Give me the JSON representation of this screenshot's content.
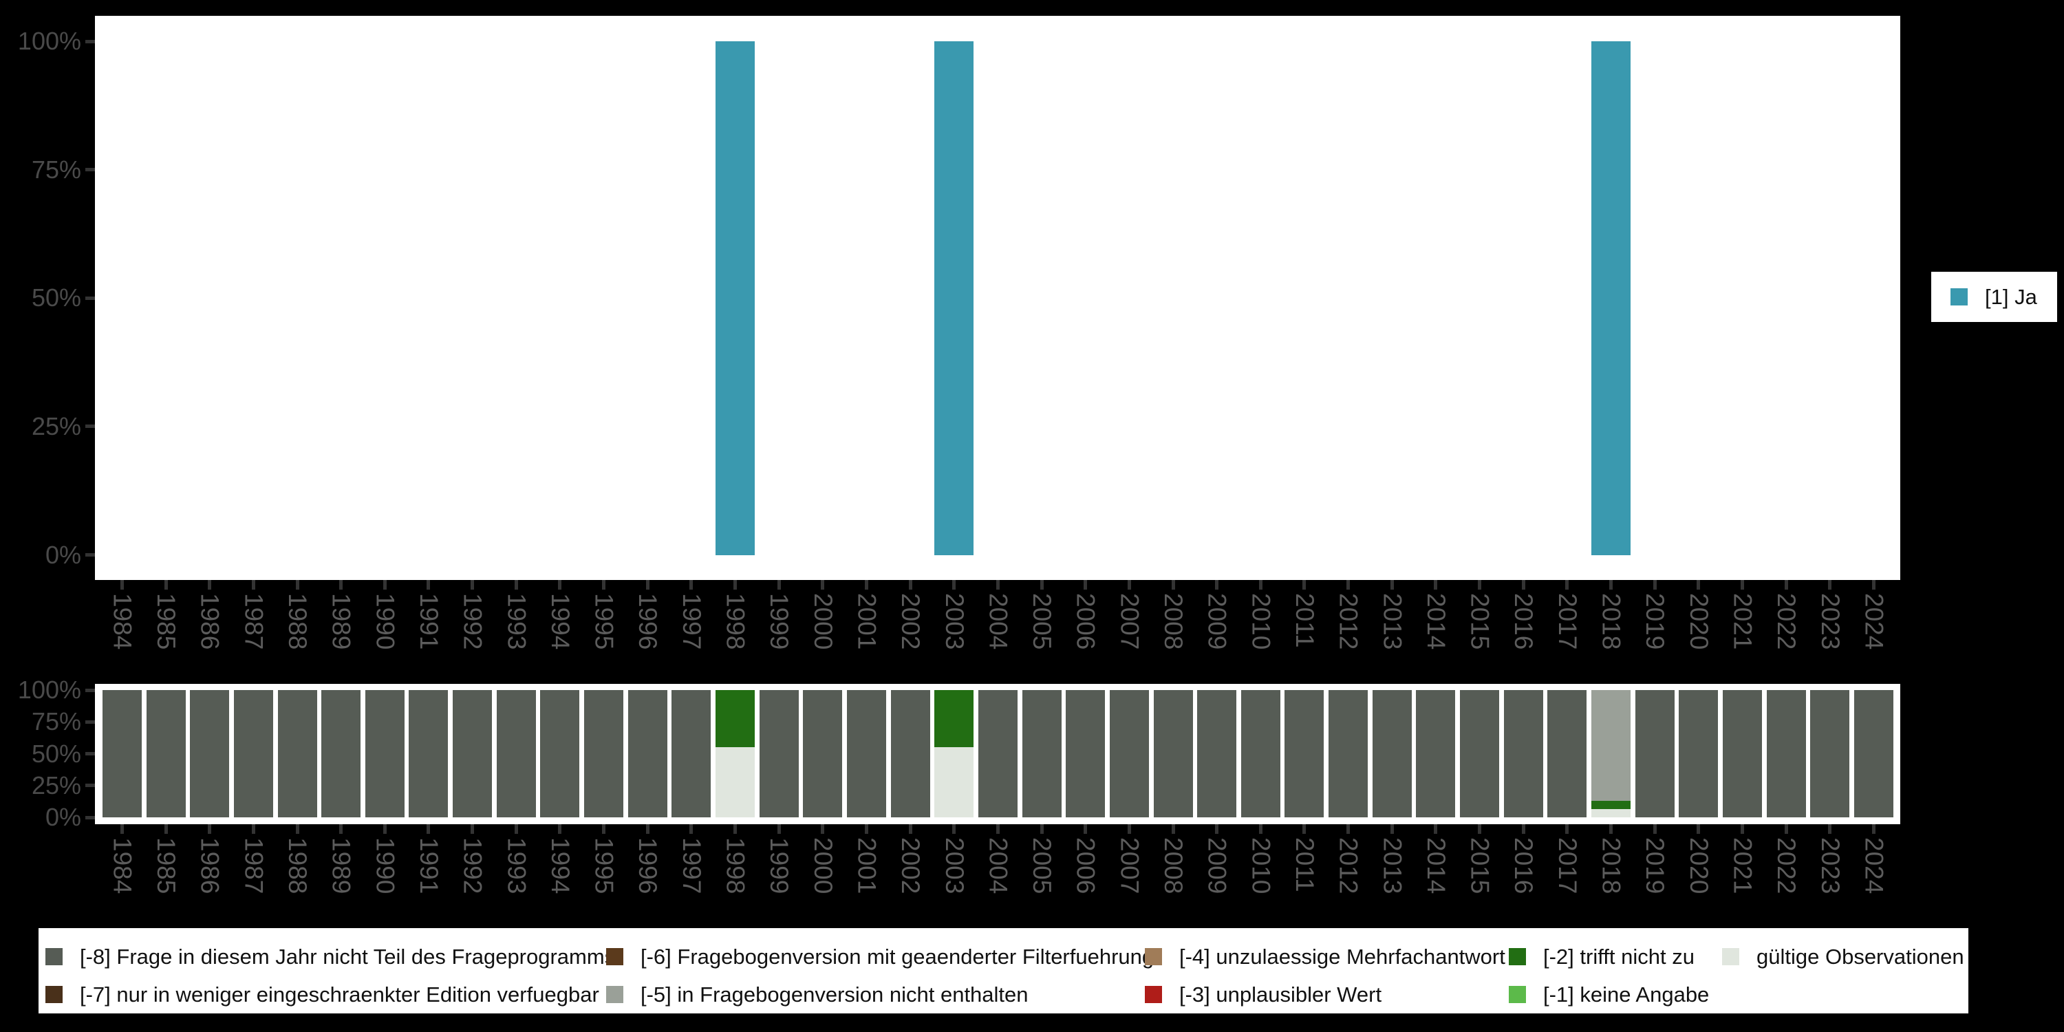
{
  "page": {
    "background": "#000000",
    "plot_background": "#ffffff",
    "description_labels": {
      "top_legend_ja": "[1] Ja"
    }
  },
  "palette": {
    "ja": "#3A99AF",
    "-8": "#565C55",
    "-7": "#49301A",
    "-6": "#5B3A1C",
    "-5": "#9AA098",
    "-4": "#A07C58",
    "-3": "#AF1D19",
    "-2": "#226E13",
    "-1": "#5CBA4A",
    "valid": "#E0E6DE"
  },
  "chart_data": [
    {
      "type": "bar",
      "title": "",
      "xlabel": "",
      "ylabel": "",
      "ylim": [
        0,
        100
      ],
      "grid": false,
      "yticks": [
        {
          "label": "100%",
          "pct": 100
        },
        {
          "label": "75%",
          "pct": 75
        },
        {
          "label": "50%",
          "pct": 50
        },
        {
          "label": "25%",
          "pct": 25
        },
        {
          "label": "0%",
          "pct": 0
        }
      ],
      "categories": [
        1984,
        1985,
        1986,
        1987,
        1988,
        1989,
        1990,
        1991,
        1992,
        1993,
        1994,
        1995,
        1996,
        1997,
        1998,
        1999,
        2000,
        2001,
        2002,
        2003,
        2004,
        2005,
        2006,
        2007,
        2008,
        2009,
        2010,
        2011,
        2012,
        2013,
        2014,
        2015,
        2016,
        2017,
        2018,
        2019,
        2020,
        2021,
        2022,
        2023,
        2024
      ],
      "series": [
        {
          "name": "[1] Ja",
          "key": "ja",
          "values": [
            0,
            0,
            0,
            0,
            0,
            0,
            0,
            0,
            0,
            0,
            0,
            0,
            0,
            0,
            100,
            0,
            0,
            0,
            0,
            100,
            0,
            0,
            0,
            0,
            0,
            0,
            0,
            0,
            0,
            0,
            0,
            0,
            0,
            0,
            100,
            0,
            0,
            0,
            0,
            0,
            0
          ]
        }
      ],
      "legend": {
        "position": "right",
        "entries": [
          {
            "label": "[1] Ja",
            "key": "ja"
          }
        ]
      }
    },
    {
      "type": "bar",
      "stacked": true,
      "stack_order": "bottom_to_top",
      "title": "",
      "xlabel": "",
      "ylabel": "",
      "ylim": [
        0,
        100
      ],
      "grid": false,
      "yticks": [
        {
          "label": "100%",
          "pct": 100
        },
        {
          "label": "75%",
          "pct": 75
        },
        {
          "label": "50%",
          "pct": 50
        },
        {
          "label": "25%",
          "pct": 25
        },
        {
          "label": "0%",
          "pct": 0
        }
      ],
      "categories": [
        1984,
        1985,
        1986,
        1987,
        1988,
        1989,
        1990,
        1991,
        1992,
        1993,
        1994,
        1995,
        1996,
        1997,
        1998,
        1999,
        2000,
        2001,
        2002,
        2003,
        2004,
        2005,
        2006,
        2007,
        2008,
        2009,
        2010,
        2011,
        2012,
        2013,
        2014,
        2015,
        2016,
        2017,
        2018,
        2019,
        2020,
        2021,
        2022,
        2023,
        2024
      ],
      "series": [
        {
          "name": "gültige Observationen",
          "key": "valid",
          "values": [
            0,
            0,
            0,
            0,
            0,
            0,
            0,
            0,
            0,
            0,
            0,
            0,
            0,
            0,
            55,
            0,
            0,
            0,
            0,
            55,
            0,
            0,
            0,
            0,
            0,
            0,
            0,
            0,
            0,
            0,
            0,
            0,
            0,
            0,
            6.5,
            0,
            0,
            0,
            0,
            0,
            0
          ]
        },
        {
          "name": "[-2] trifft nicht zu",
          "key": "-2",
          "values": [
            0,
            0,
            0,
            0,
            0,
            0,
            0,
            0,
            0,
            0,
            0,
            0,
            0,
            0,
            45,
            0,
            0,
            0,
            0,
            45,
            0,
            0,
            0,
            0,
            0,
            0,
            0,
            0,
            0,
            0,
            0,
            0,
            0,
            0,
            6.5,
            0,
            0,
            0,
            0,
            0,
            0
          ]
        },
        {
          "name": "[-5] in Fragebogenversion nicht enthalten",
          "key": "-5",
          "values": [
            0,
            0,
            0,
            0,
            0,
            0,
            0,
            0,
            0,
            0,
            0,
            0,
            0,
            0,
            0,
            0,
            0,
            0,
            0,
            0,
            0,
            0,
            0,
            0,
            0,
            0,
            0,
            0,
            0,
            0,
            0,
            0,
            0,
            0,
            87,
            0,
            0,
            0,
            0,
            0,
            0
          ]
        },
        {
          "name": "[-8] Frage in diesem Jahr nicht Teil des Frageprogramms",
          "key": "-8",
          "values": [
            100,
            100,
            100,
            100,
            100,
            100,
            100,
            100,
            100,
            100,
            100,
            100,
            100,
            100,
            0,
            100,
            100,
            100,
            100,
            0,
            100,
            100,
            100,
            100,
            100,
            100,
            100,
            100,
            100,
            100,
            100,
            100,
            100,
            100,
            0,
            100,
            100,
            100,
            100,
            100,
            100
          ]
        }
      ],
      "legend": {
        "position": "bottom",
        "entries": [
          {
            "label": "[-8] Frage in diesem Jahr nicht Teil des Frageprogramms",
            "key": "-8",
            "col": 0,
            "row": 0
          },
          {
            "label": "[-7] nur in weniger eingeschraenkter Edition verfuegbar",
            "key": "-7",
            "col": 0,
            "row": 1
          },
          {
            "label": "[-6] Fragebogenversion mit geaenderter Filterfuehrung",
            "key": "-6",
            "col": 1,
            "row": 0
          },
          {
            "label": "[-5] in Fragebogenversion nicht enthalten",
            "key": "-5",
            "col": 1,
            "row": 1
          },
          {
            "label": "[-4] unzulaessige Mehrfachantwort",
            "key": "-4",
            "col": 2,
            "row": 0
          },
          {
            "label": "[-3] unplausibler Wert",
            "key": "-3",
            "col": 2,
            "row": 1
          },
          {
            "label": "[-2] trifft nicht zu",
            "key": "-2",
            "col": 3,
            "row": 0
          },
          {
            "label": "[-1] keine Angabe",
            "key": "-1",
            "col": 3,
            "row": 1
          },
          {
            "label": "gültige Observationen",
            "key": "valid",
            "col": 4,
            "row": 0
          }
        ]
      }
    }
  ]
}
